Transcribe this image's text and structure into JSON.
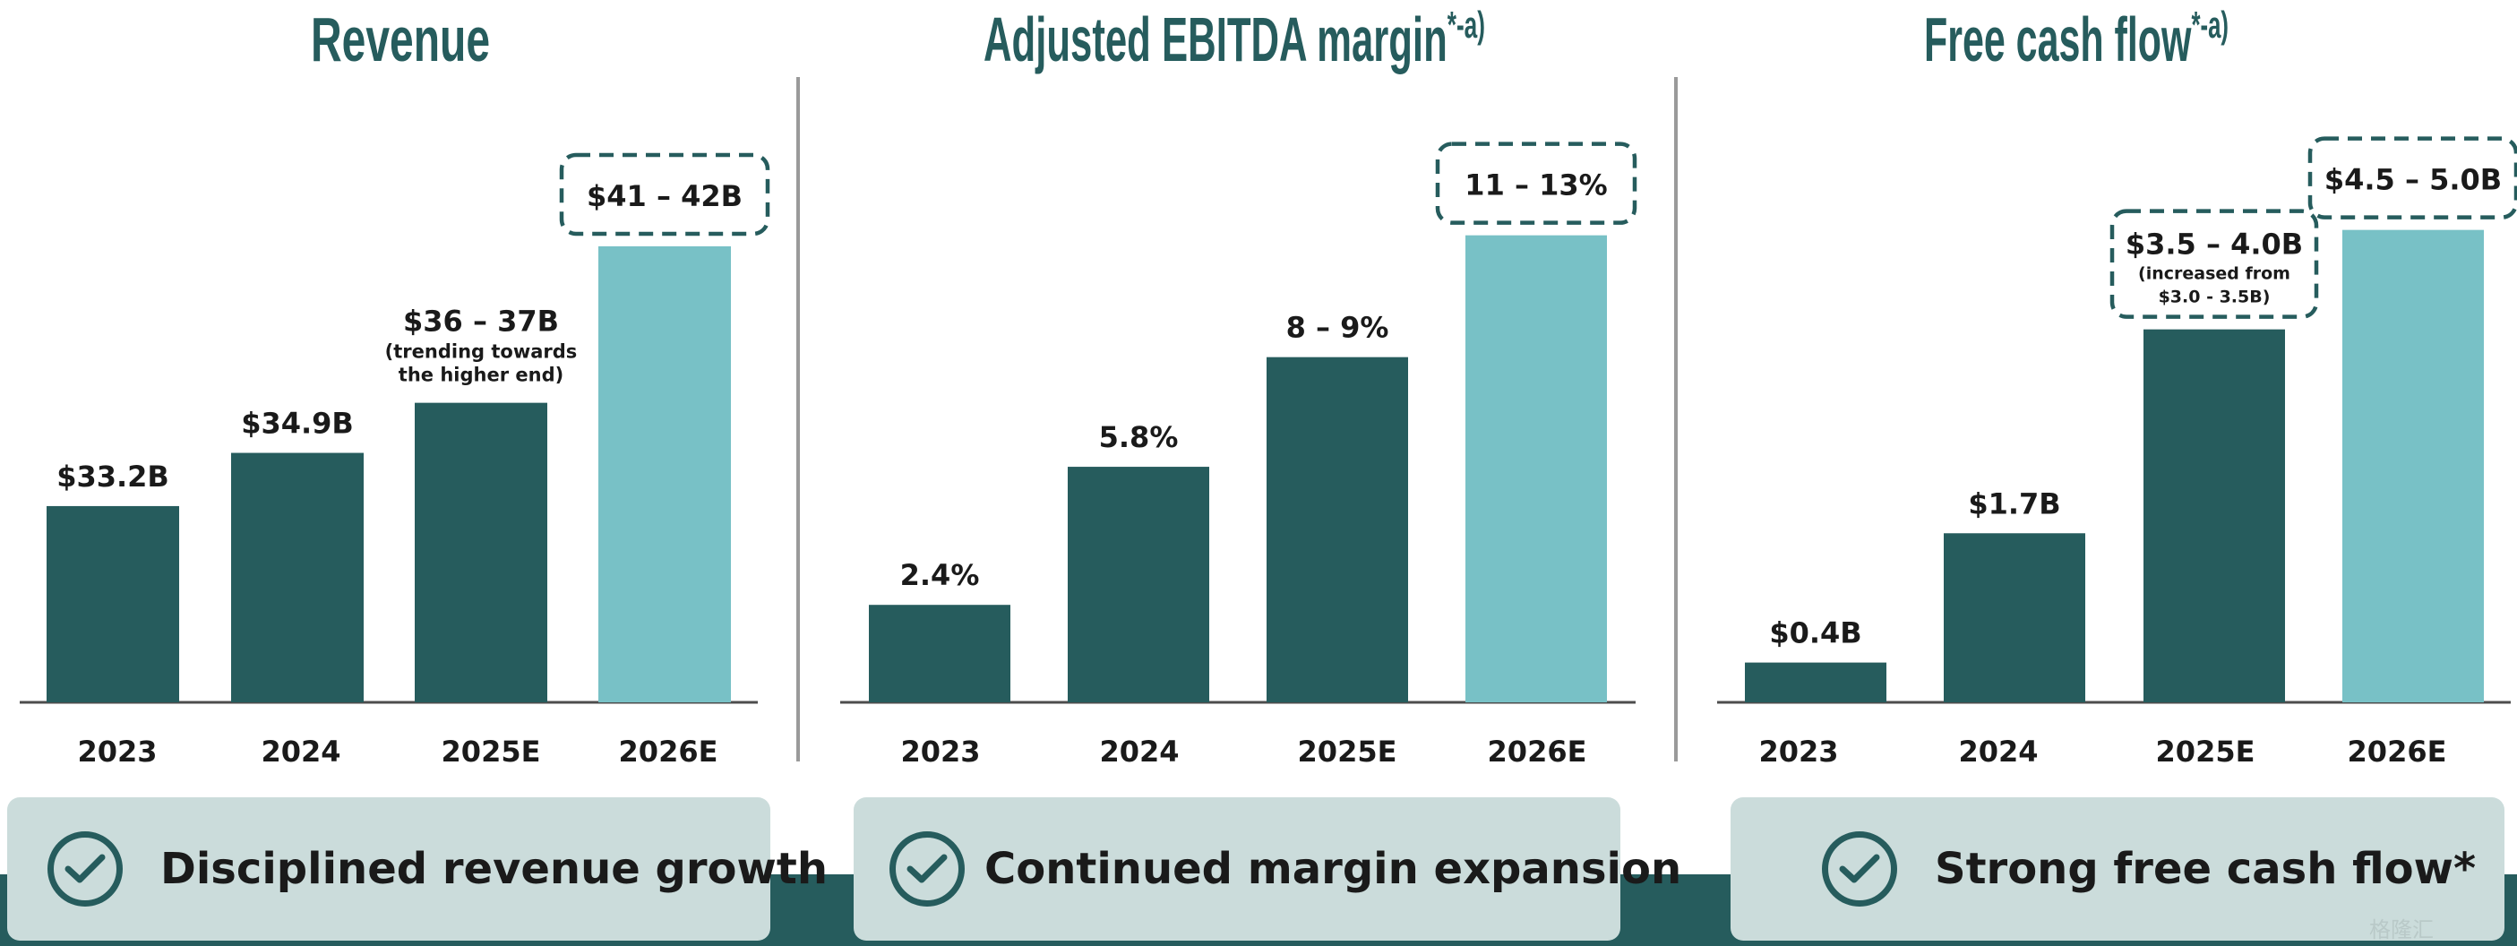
{
  "colors": {
    "actual": "#265c5d",
    "estimate": "#78c1c6",
    "axis": "#4d4d4d",
    "band": "#265c5d",
    "card": "#cbdcdb"
  },
  "chart_data": [
    {
      "type": "bar",
      "title": "Revenue",
      "title_suffix": "",
      "categories": [
        "2023",
        "2024",
        "2025E",
        "2026E"
      ],
      "values": [
        33.2,
        34.9,
        36.5,
        41.5
      ],
      "value_labels": [
        "$33.2B",
        "$34.9B",
        "$36 – 37B",
        "$41 – 42B"
      ],
      "sub_labels": [
        "",
        "",
        "(trending towards|the higher end)",
        ""
      ],
      "boxed": [
        false,
        false,
        false,
        true
      ],
      "estimate": [
        false,
        false,
        false,
        true
      ],
      "ylim": [
        26.93,
        42.5
      ],
      "unit": "$B"
    },
    {
      "type": "bar",
      "title": "Adjusted EBITDA margin",
      "title_suffix": "*-a)",
      "categories": [
        "2023",
        "2024",
        "2025E",
        "2026E"
      ],
      "values": [
        2.4,
        5.8,
        8.5,
        11.5
      ],
      "value_labels": [
        "2.4%",
        "5.8%",
        "8 – 9%",
        "11 – 13%"
      ],
      "sub_labels": [
        "",
        "",
        "",
        ""
      ],
      "boxed": [
        false,
        false,
        false,
        true
      ],
      "estimate": [
        false,
        false,
        false,
        true
      ],
      "ylim": [
        0,
        12.0
      ],
      "unit": "%"
    },
    {
      "type": "bar",
      "title": "Free cash flow",
      "title_suffix": "*-a)",
      "categories": [
        "2023",
        "2024",
        "2025E",
        "2026E"
      ],
      "values": [
        0.4,
        1.7,
        3.75,
        4.75
      ],
      "value_labels": [
        "$0.4B",
        "$1.7B",
        "$3.5 – 4.0B",
        "$4.5 – 5.0B"
      ],
      "sub_labels": [
        "",
        "",
        "(increased from|$3.0 - 3.5B)",
        ""
      ],
      "boxed": [
        false,
        false,
        true,
        true
      ],
      "estimate": [
        false,
        false,
        false,
        true
      ],
      "ylim": [
        0,
        4.9
      ],
      "unit": "$B"
    }
  ],
  "takeaways": [
    {
      "label": "Disciplined revenue growth",
      "icon": "check-circle-icon"
    },
    {
      "label": "Continued margin expansion",
      "icon": "check-circle-icon"
    },
    {
      "label": "Strong free cash flow*",
      "icon": "check-circle-icon"
    }
  ],
  "watermark": "格隆汇"
}
